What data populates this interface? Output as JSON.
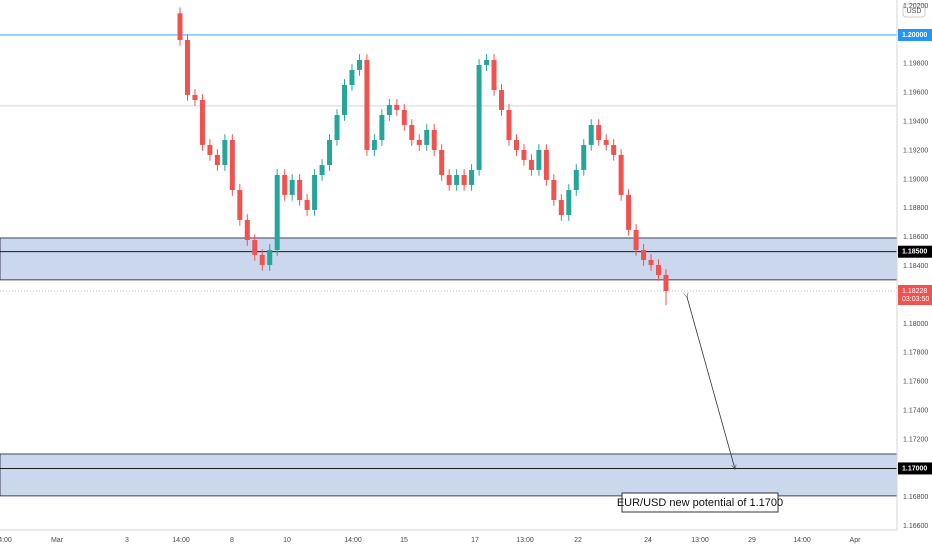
{
  "chart_data": {
    "type": "candlestick",
    "currency": "USD",
    "ylim": [
      1.16574,
      1.20242
    ],
    "yticks": [
      {
        "value": 1.166,
        "label": "1.16600"
      },
      {
        "value": 1.168,
        "label": "1.16800"
      },
      {
        "value": 1.172,
        "label": "1.17200"
      },
      {
        "value": 1.174,
        "label": "1.17400"
      },
      {
        "value": 1.176,
        "label": "1.17600"
      },
      {
        "value": 1.178,
        "label": "1.17800"
      },
      {
        "value": 1.18,
        "label": "1.18000"
      },
      {
        "value": 1.184,
        "label": "1.18400"
      },
      {
        "value": 1.186,
        "label": "1.18600"
      },
      {
        "value": 1.188,
        "label": "1.18800"
      },
      {
        "value": 1.19,
        "label": "1.19000"
      },
      {
        "value": 1.192,
        "label": "1.19200"
      },
      {
        "value": 1.194,
        "label": "1.19400"
      },
      {
        "value": 1.196,
        "label": "1.19600"
      },
      {
        "value": 1.198,
        "label": "1.19800"
      },
      {
        "value": 1.202,
        "label": "1.20200"
      }
    ],
    "x_labels": [
      "4:00",
      "Mar",
      "3",
      "14:00",
      "8",
      "10",
      "14:00",
      "15",
      "17",
      "13:00",
      "22",
      "24",
      "13:00",
      "29",
      "14:00",
      "Apr"
    ],
    "up_color": "#26a69a",
    "down_color": "#ef5350",
    "candles": {
      "open": [
        1.2015,
        1.19965,
        1.19585,
        1.1955,
        1.19239,
        1.1917,
        1.191,
        1.19273,
        1.18927,
        1.1872,
        1.18581,
        1.18478,
        1.18408,
        1.18512,
        1.19031,
        1.18893,
        1.18997,
        1.18858,
        1.18789,
        1.19031,
        1.191,
        1.19273,
        1.19446,
        1.19654,
        1.19758,
        1.19827,
        1.19204,
        1.19273,
        1.19446,
        1.19516,
        1.19481,
        1.19377,
        1.19273,
        1.19239,
        1.19343,
        1.19204,
        1.19031,
        1.18962,
        1.19031,
        1.18962,
        1.19066,
        1.19792,
        1.19827,
        1.19619,
        1.19481,
        1.19273,
        1.19204,
        1.19135,
        1.19066,
        1.19204,
        1.18997,
        1.18858,
        1.18754,
        1.18927,
        1.19066,
        1.19239,
        1.19377,
        1.19273,
        1.19239,
        1.1917,
        1.18893,
        1.18651,
        1.18512,
        1.18443,
        1.18408,
        1.18339
      ],
      "high": [
        1.2019,
        1.20005,
        1.19625,
        1.1959,
        1.19279,
        1.1921,
        1.19313,
        1.19313,
        1.18967,
        1.1876,
        1.18621,
        1.18518,
        1.18552,
        1.19071,
        1.19071,
        1.19037,
        1.19037,
        1.18898,
        1.19071,
        1.1914,
        1.19313,
        1.19486,
        1.19694,
        1.19798,
        1.19867,
        1.19867,
        1.19313,
        1.19486,
        1.19556,
        1.19556,
        1.19521,
        1.19417,
        1.19313,
        1.19383,
        1.19383,
        1.19244,
        1.19071,
        1.19071,
        1.19071,
        1.19106,
        1.19832,
        1.19867,
        1.19867,
        1.19659,
        1.19521,
        1.19313,
        1.19244,
        1.19175,
        1.19244,
        1.19244,
        1.19037,
        1.18898,
        1.18967,
        1.19106,
        1.19279,
        1.19417,
        1.19417,
        1.19313,
        1.19279,
        1.1921,
        1.18933,
        1.18691,
        1.18552,
        1.18483,
        1.18448,
        1.18379
      ],
      "low": [
        1.19925,
        1.19545,
        1.1951,
        1.19199,
        1.1913,
        1.1906,
        1.1906,
        1.18887,
        1.1868,
        1.18541,
        1.18438,
        1.18368,
        1.18368,
        1.18472,
        1.18853,
        1.18853,
        1.18818,
        1.18749,
        1.18749,
        1.18991,
        1.1906,
        1.19233,
        1.19406,
        1.19614,
        1.19718,
        1.19164,
        1.19164,
        1.19233,
        1.19406,
        1.19441,
        1.19337,
        1.19233,
        1.19199,
        1.19199,
        1.19164,
        1.18991,
        1.18922,
        1.18922,
        1.18922,
        1.18922,
        1.19026,
        1.19752,
        1.19579,
        1.19441,
        1.19233,
        1.19164,
        1.19095,
        1.19026,
        1.19026,
        1.18957,
        1.18818,
        1.18714,
        1.18714,
        1.18887,
        1.19026,
        1.19199,
        1.19233,
        1.19199,
        1.1913,
        1.18853,
        1.18611,
        1.18472,
        1.18403,
        1.18368,
        1.18299,
        1.1813
      ],
      "close": [
        1.19965,
        1.19585,
        1.1955,
        1.19239,
        1.1917,
        1.191,
        1.19273,
        1.18927,
        1.1872,
        1.18581,
        1.18478,
        1.18408,
        1.18512,
        1.19031,
        1.18893,
        1.18997,
        1.18858,
        1.18789,
        1.19031,
        1.191,
        1.19273,
        1.19446,
        1.19654,
        1.19758,
        1.19827,
        1.19204,
        1.19273,
        1.19446,
        1.19516,
        1.19481,
        1.19377,
        1.19273,
        1.19239,
        1.19343,
        1.19204,
        1.19031,
        1.18962,
        1.19031,
        1.18962,
        1.19066,
        1.19792,
        1.19827,
        1.19619,
        1.19481,
        1.19273,
        1.19204,
        1.19135,
        1.19066,
        1.19204,
        1.18997,
        1.18858,
        1.18754,
        1.18927,
        1.19066,
        1.19239,
        1.19377,
        1.19273,
        1.19239,
        1.1917,
        1.18893,
        1.18651,
        1.18512,
        1.18443,
        1.18408,
        1.18339,
        1.18228
      ]
    },
    "levels": [
      {
        "value": 1.2,
        "label": "1.20000",
        "color": "#2196f3"
      },
      {
        "value": 1.185,
        "label": "1.18500",
        "color": "#000000"
      },
      {
        "value": 1.17,
        "label": "1.17000",
        "color": "#000000"
      }
    ],
    "reference_line": 1.19509,
    "zones": [
      {
        "top": 1.18595,
        "bottom": 1.18305
      },
      {
        "top": 1.171,
        "bottom": 1.1681
      }
    ],
    "current_price": {
      "value": 1.18228,
      "label": "1.18228",
      "countdown": "03:03:50"
    },
    "annotation": "EUR/USD new potential of 1.1700"
  }
}
